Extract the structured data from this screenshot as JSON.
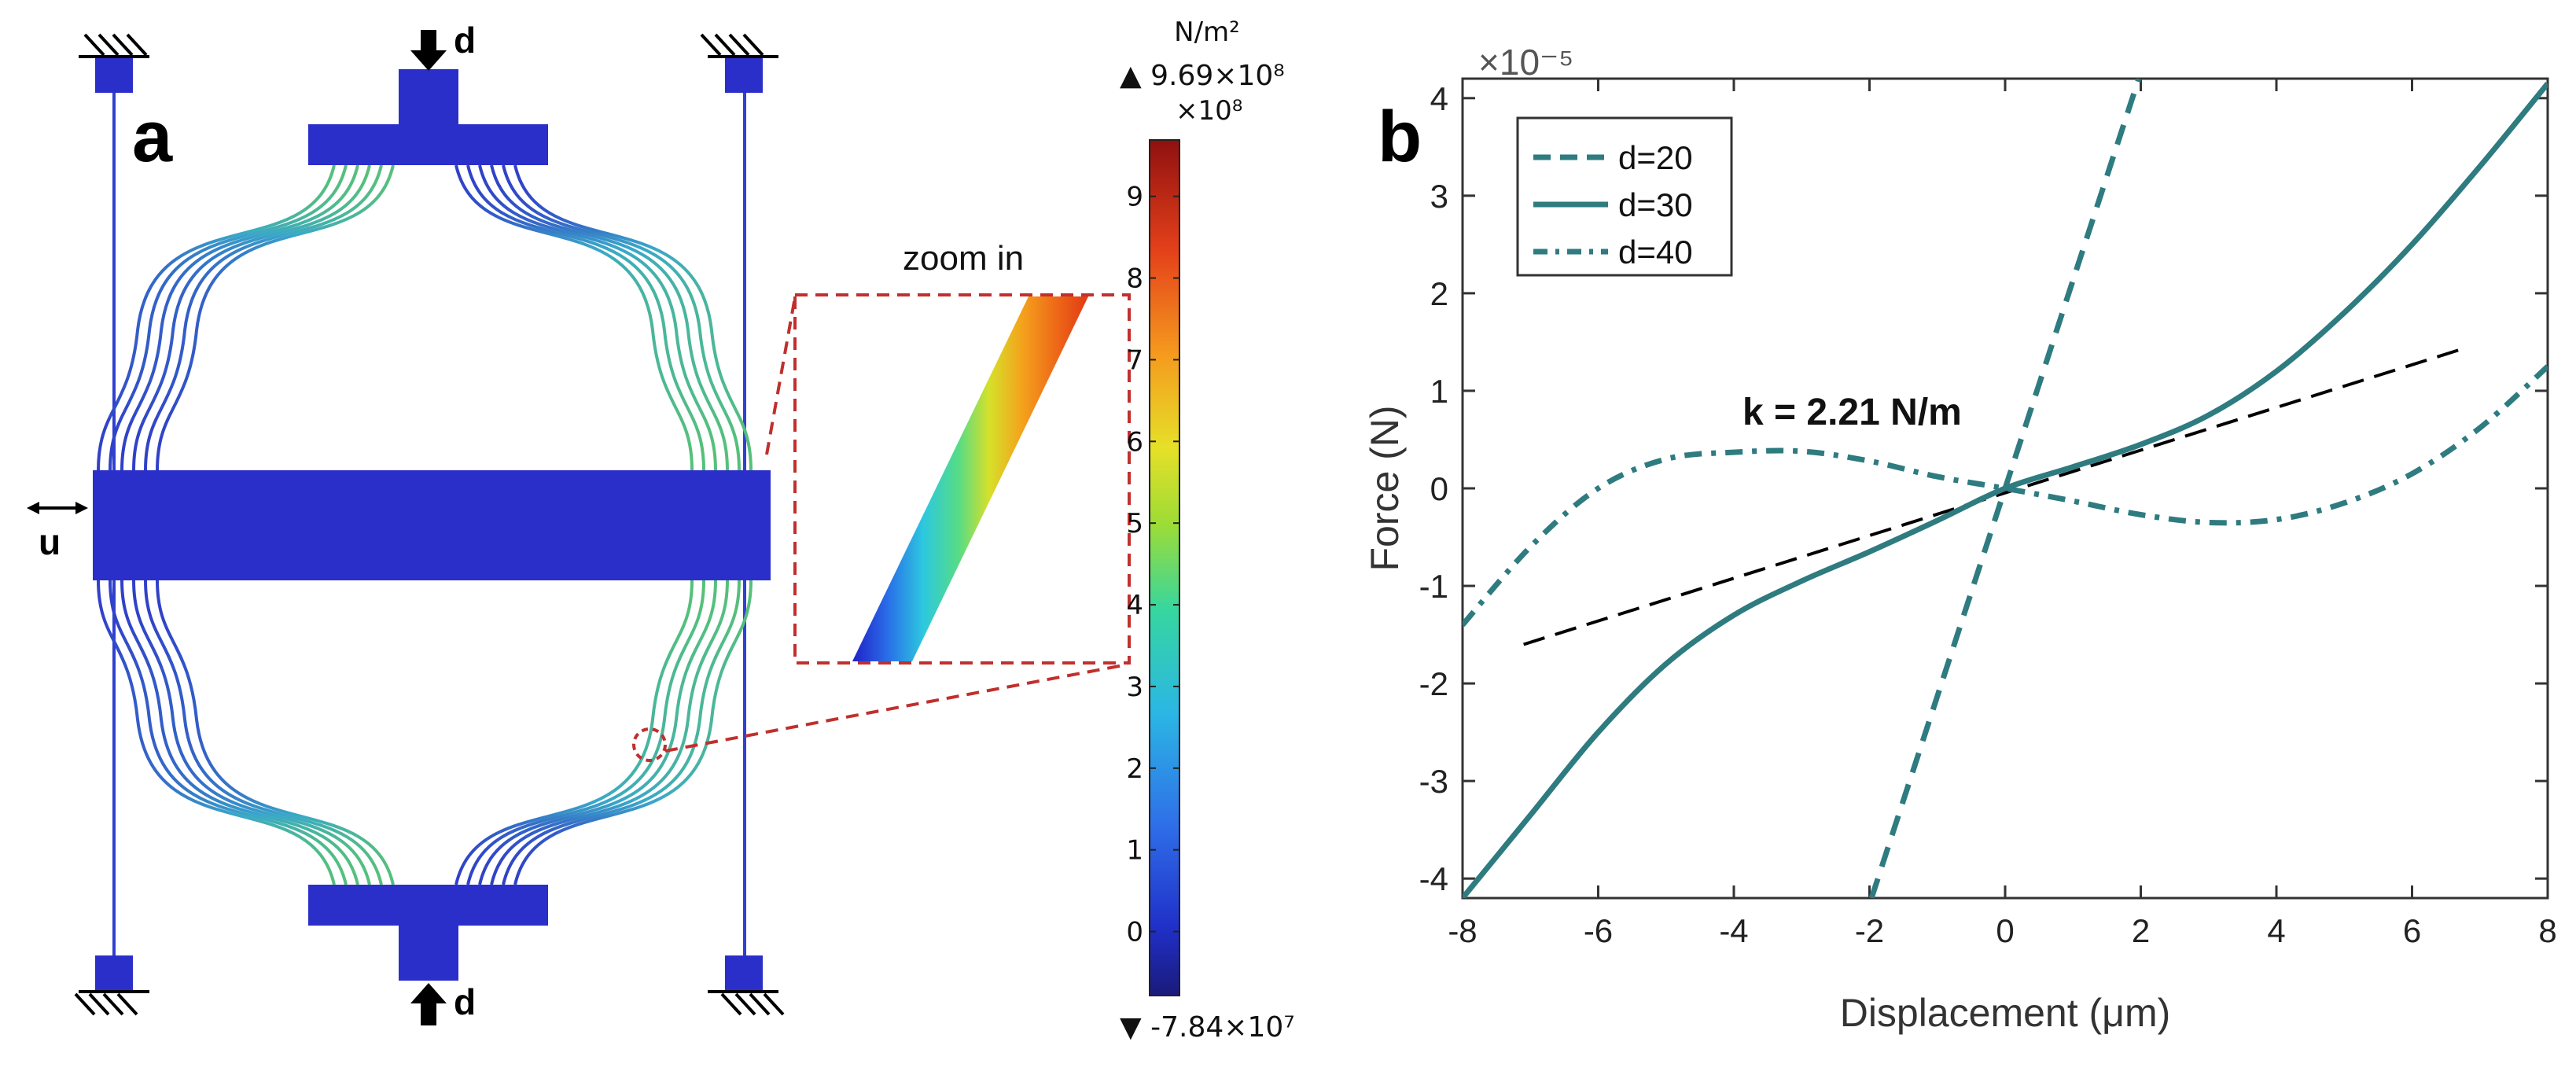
{
  "panel_a": {
    "label": "a",
    "arrow_top_label": "d",
    "arrow_bottom_label": "d",
    "arrow_left_label": "u",
    "zoom_label": "zoom in",
    "colorbar": {
      "unit_label": "N/m²",
      "max_label": "▲ 9.69×10⁸",
      "scale_label": "×10⁸",
      "min_label": "▼ -7.84×10⁷",
      "tick_values": [
        0,
        1,
        2,
        3,
        4,
        5,
        6,
        7,
        8,
        9
      ],
      "min_value": -0.784,
      "max_value": 9.69
    },
    "colors": {
      "structure": "#2b2fc9",
      "zoom_box": "#c0302e"
    }
  },
  "chart_data": {
    "type": "line",
    "panel_label": "b",
    "xlabel": "Displacement (μm)",
    "ylabel": "Force (N)",
    "y_multiplier_label": "×10⁻⁵",
    "xlim": [
      -8,
      8
    ],
    "ylim": [
      -4.2,
      4.2
    ],
    "xticks": [
      -8,
      -6,
      -4,
      -2,
      0,
      2,
      4,
      6,
      8
    ],
    "yticks": [
      -4,
      -3,
      -2,
      -1,
      0,
      1,
      2,
      3,
      4
    ],
    "annotation": "k = 2.21 N/m",
    "series": [
      {
        "name": "d=20",
        "style": "dashed",
        "color": "#2e7b80",
        "x": [
          -1.97,
          1.97
        ],
        "y": [
          -4.2,
          4.2
        ]
      },
      {
        "name": "d=30",
        "style": "solid",
        "color": "#2e7b80",
        "x": [
          -8,
          -7,
          -6,
          -5,
          -4,
          -3,
          -2,
          -1,
          0,
          1,
          2,
          3,
          4,
          5,
          6,
          7,
          8
        ],
        "y": [
          -4.2,
          -3.35,
          -2.5,
          -1.8,
          -1.3,
          -0.95,
          -0.65,
          -0.33,
          0,
          0.22,
          0.45,
          0.75,
          1.2,
          1.8,
          2.5,
          3.3,
          4.15
        ]
      },
      {
        "name": "d=40",
        "style": "dashdot",
        "color": "#2e7b80",
        "x": [
          -8,
          -7,
          -6,
          -5,
          -4,
          -3,
          -2,
          -1,
          0,
          1,
          2,
          3,
          4,
          5,
          6,
          7,
          8
        ],
        "y": [
          -1.4,
          -0.6,
          0.0,
          0.3,
          0.37,
          0.38,
          0.28,
          0.12,
          0.0,
          -0.13,
          -0.27,
          -0.35,
          -0.32,
          -0.15,
          0.15,
          0.62,
          1.25
        ]
      }
    ],
    "reference_line": {
      "name": "linear fit",
      "style": "dashed",
      "color": "#000000",
      "x": [
        -7.1,
        6.7
      ],
      "y": [
        -1.6,
        1.42
      ]
    },
    "legend": [
      "d=20",
      "d=30",
      "d=40"
    ],
    "legend_position": "top-left"
  }
}
